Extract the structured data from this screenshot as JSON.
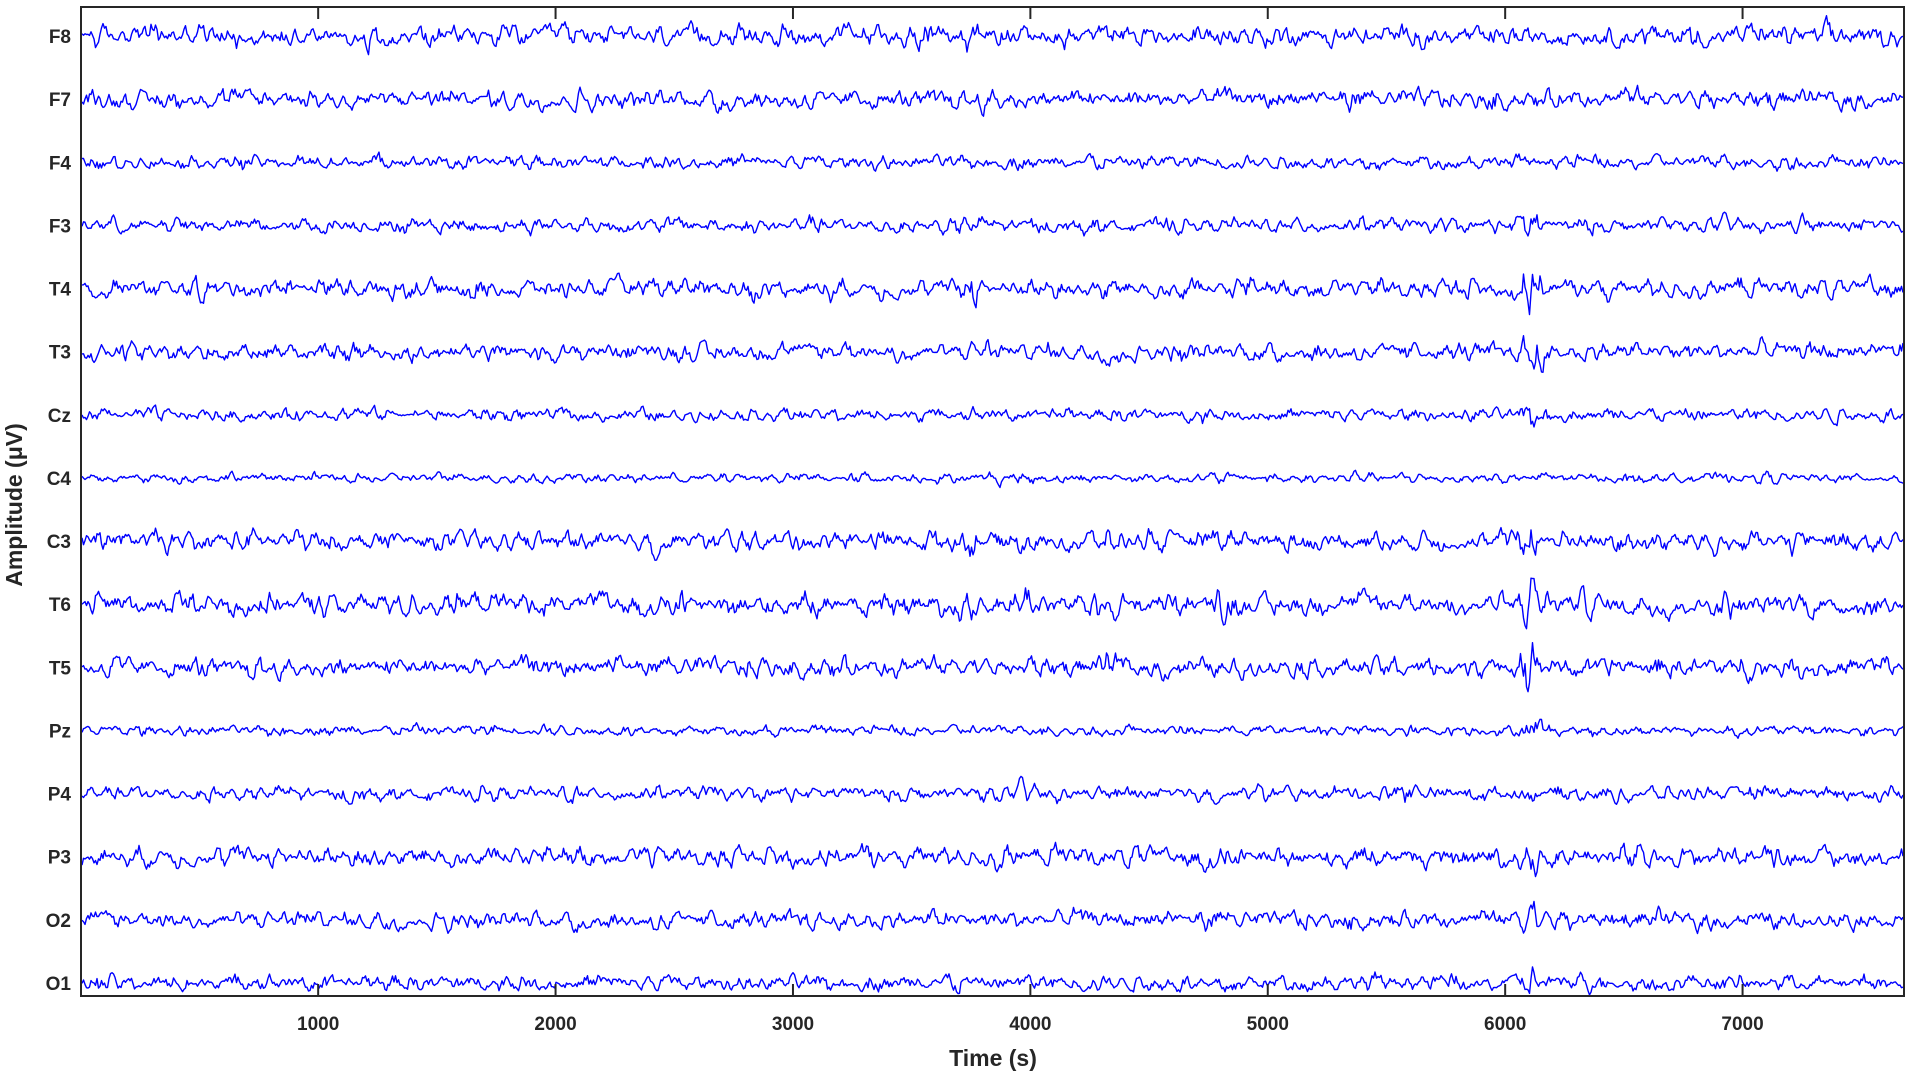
{
  "chart_data": {
    "type": "line",
    "title": "",
    "xlabel": "Time (s)",
    "ylabel": "Amplitude (μV)",
    "xlim": [
      1,
      7680
    ],
    "xticks": [
      1000,
      2000,
      3000,
      4000,
      5000,
      6000,
      7000
    ],
    "xtick_labels": [
      "1000",
      "2000",
      "3000",
      "4000",
      "5000",
      "6000",
      "7000"
    ],
    "grid": false,
    "legend": "none",
    "line_color": "#0000ff",
    "axes_color": "#262626",
    "channels": [
      "F8",
      "F7",
      "F4",
      "F3",
      "T4",
      "T3",
      "Cz",
      "C4",
      "C3",
      "T6",
      "T5",
      "Pz",
      "P4",
      "P3",
      "O2",
      "O1"
    ],
    "channel_amplitude": [
      1.0,
      0.9,
      0.65,
      0.7,
      0.9,
      0.85,
      0.6,
      0.45,
      0.95,
      1.05,
      0.95,
      0.5,
      0.7,
      0.95,
      0.85,
      0.75
    ],
    "events": [
      {
        "x": 3750,
        "amplitude": 1.6,
        "channels": [
          "F8",
          "F7",
          "F3",
          "T4",
          "C3",
          "T6"
        ]
      },
      {
        "x": 3970,
        "amplitude": 1.8,
        "channels": [
          "C4",
          "P4",
          "T6"
        ]
      },
      {
        "x": 6110,
        "amplitude": 2.6,
        "channels": [
          "T4",
          "T3",
          "Cz",
          "C3",
          "T6",
          "T5",
          "Pz",
          "P3",
          "O2",
          "O1",
          "F3"
        ]
      },
      {
        "x": 5580,
        "amplitude": 1.7,
        "channels": [
          "P4"
        ]
      },
      {
        "x": 4350,
        "amplitude": 1.5,
        "channels": [
          "T3",
          "T6",
          "T5",
          "C3"
        ]
      },
      {
        "x": 4800,
        "amplitude": 1.5,
        "channels": [
          "P3",
          "T6"
        ]
      },
      {
        "x": 6500,
        "amplitude": 1.4,
        "channels": [
          "T6",
          "P3",
          "C3"
        ]
      }
    ]
  }
}
